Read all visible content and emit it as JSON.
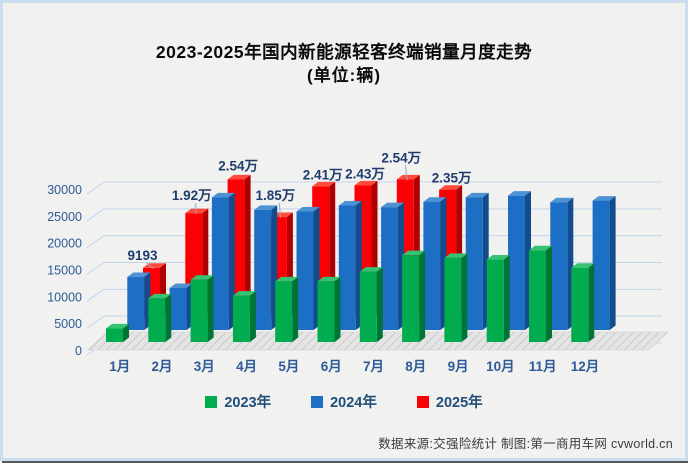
{
  "title": {
    "line1": "2023-2025年国内新能源轻客终端销量月度走势",
    "line2": "(单位:辆)"
  },
  "chart_data": {
    "type": "bar",
    "style": "3d-column",
    "title": "2023-2025年国内新能源轻客终端销量月度走势(单位:辆)",
    "categories": [
      "1月",
      "2月",
      "3月",
      "4月",
      "5月",
      "6月",
      "7月",
      "8月",
      "9月",
      "10月",
      "11月",
      "12月"
    ],
    "series": [
      {
        "name": "2023年",
        "colors": {
          "front": "#00AC4E",
          "side": "#007336",
          "top": "#35C272"
        },
        "values": [
          2500,
          8000,
          11400,
          8500,
          11100,
          11100,
          12900,
          15900,
          15400,
          15100,
          16800,
          13600
        ]
      },
      {
        "name": "2024年",
        "colors": {
          "front": "#1D6FC5",
          "side": "#124C8C",
          "top": "#4E92D4"
        },
        "values": [
          9700,
          7700,
          24300,
          22000,
          21700,
          22800,
          22500,
          23500,
          24300,
          24600,
          23400,
          23700
        ]
      },
      {
        "name": "2025年",
        "colors": {
          "front": "#FB0004",
          "side": "#AE0000",
          "top": "#FF4A3C"
        },
        "values": [
          9193,
          19200,
          25400,
          18500,
          24100,
          24300,
          25400,
          23500
        ],
        "data_labels": [
          "9193",
          "1.92万",
          "2.54万",
          "1.85万",
          "2.41万",
          "2.43万",
          "2.54万",
          "2.35万"
        ]
      }
    ],
    "ylim": [
      0,
      30000
    ],
    "y_ticks": [
      0,
      5000,
      10000,
      15000,
      20000,
      25000,
      30000
    ],
    "grid": true,
    "legend_position": "bottom"
  },
  "colors": {
    "background": "#F1F1F0",
    "panel_border": "#CBDDF1",
    "gridline": "#C3D5EB",
    "axis_text": "#2D5A96",
    "data_label_text": "#1E3C6E",
    "legend_text": "#1F4E79",
    "floor_fill": "#E4E4E4",
    "floor_hatch": "#C9C9C9"
  },
  "footer": {
    "text": "数据来源:交强险统计 制图:第一商用车网 cvworld.cn"
  }
}
